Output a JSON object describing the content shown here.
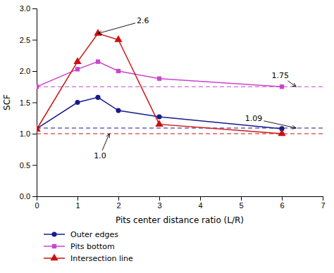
{
  "chart_data": {
    "type": "line",
    "xlabel": "Pits center distance ratio (L/R)",
    "ylabel": "SCF",
    "x": [
      0,
      1,
      1.5,
      2,
      3,
      6
    ],
    "series": [
      {
        "name": "Outer edges",
        "color": "#1a1a8c",
        "marker": "circle",
        "values": [
          1.08,
          1.5,
          1.58,
          1.37,
          1.27,
          1.08
        ]
      },
      {
        "name": "Pits bottom",
        "color": "#cc44cc",
        "marker": "square",
        "values": [
          1.75,
          2.03,
          2.15,
          2.0,
          1.88,
          1.75
        ]
      },
      {
        "name": "Intersection line",
        "color": "#cc1111",
        "marker": "triangle",
        "values": [
          1.07,
          2.15,
          2.6,
          2.5,
          1.15,
          1.0
        ]
      }
    ],
    "hlines": [
      {
        "value": 1.75,
        "color": "#cc44cc",
        "line_style": "dashed"
      },
      {
        "value": 1.09,
        "color": "#1a1a8c",
        "line_style": "dashed"
      },
      {
        "value": 1.0,
        "color": "#cc1111",
        "line_style": "dashed"
      }
    ],
    "annotations": [
      {
        "text": "2.6",
        "x": 1.5,
        "y": 2.6,
        "text_x": 2.45,
        "text_y": 2.8
      },
      {
        "text": "1.75",
        "x": 6.35,
        "y": 1.75,
        "text_x": 5.75,
        "text_y": 1.93
      },
      {
        "text": "1.09",
        "x": 6.35,
        "y": 1.09,
        "text_x": 5.1,
        "text_y": 1.24
      },
      {
        "text": "1.0",
        "x": 1.78,
        "y": 1.0,
        "text_x": 1.55,
        "text_y": 0.7
      }
    ],
    "xlim": [
      0,
      7
    ],
    "ylim": [
      0.0,
      3.0
    ],
    "xticks": [
      0,
      1,
      2,
      3,
      4,
      5,
      6,
      7
    ],
    "yticks": [
      {
        "value": 0,
        "label": "0.0"
      },
      0.5,
      {
        "value": 1,
        "label": "1.0"
      },
      1.5,
      {
        "value": 2,
        "label": "2.0"
      },
      2.5,
      {
        "value": 3,
        "label": "3.0"
      }
    ],
    "grid": false,
    "legend": "bottom"
  }
}
